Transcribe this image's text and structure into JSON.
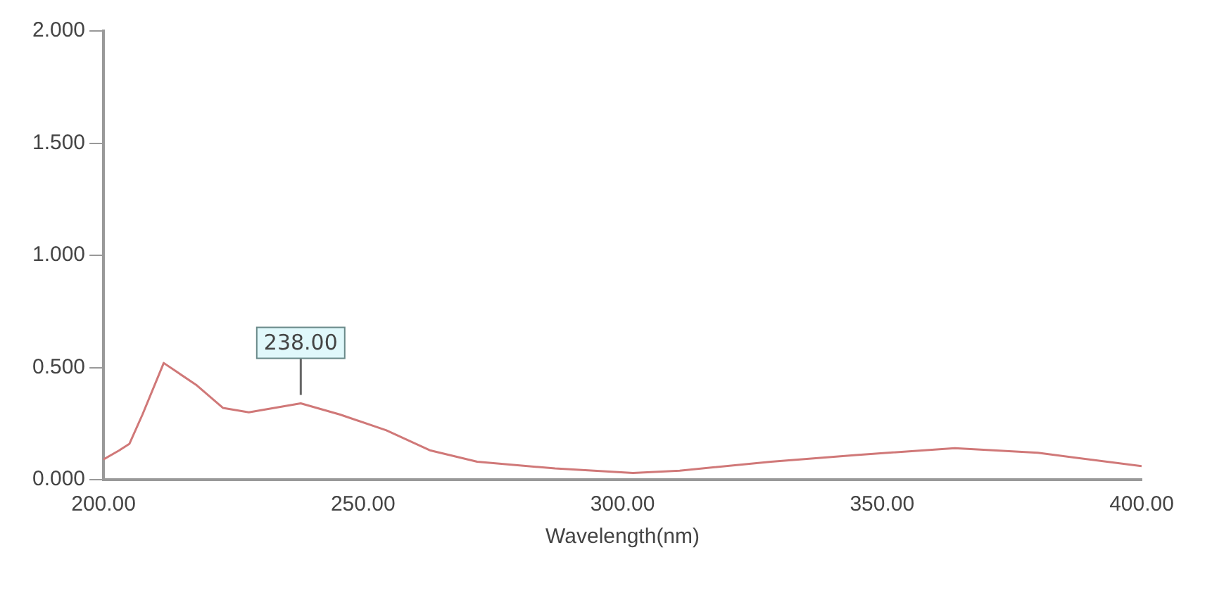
{
  "chart_data": {
    "type": "line",
    "xlabel": "Wavelength(nm)",
    "x": [
      200,
      203,
      205,
      207.5,
      211.6,
      218,
      223,
      228,
      238,
      245.6,
      254.5,
      263,
      272,
      287,
      302,
      311,
      328.6,
      345,
      364,
      380,
      400
    ],
    "series": [
      {
        "color": "#d07878",
        "values": [
          0.09,
          0.13,
          0.16,
          0.29,
          0.52,
          0.42,
          0.32,
          0.3,
          0.34,
          0.29,
          0.22,
          0.13,
          0.08,
          0.05,
          0.03,
          0.04,
          0.08,
          0.11,
          0.14,
          0.12,
          0.06
        ]
      }
    ],
    "xlim": [
      200,
      400
    ],
    "xticks": [
      {
        "value": 200,
        "label": "200.00"
      },
      {
        "value": 250,
        "label": "250.00"
      },
      {
        "value": 300,
        "label": "300.00"
      },
      {
        "value": 350,
        "label": "350.00"
      },
      {
        "value": 400,
        "label": "400.00"
      }
    ],
    "ylim": [
      0,
      2
    ],
    "yticks": [
      {
        "value": 0,
        "label": "0.000"
      },
      {
        "value": 0.5,
        "label": "0.500"
      },
      {
        "value": 1,
        "label": "1.000"
      },
      {
        "value": 1.5,
        "label": "1.500"
      },
      {
        "value": 2,
        "label": "2.000"
      }
    ],
    "annotations": [
      {
        "text": "238.00",
        "x": 238,
        "y": 0.34
      }
    ],
    "grid": false,
    "legend": false,
    "marker": "none",
    "line_style": "solid"
  }
}
